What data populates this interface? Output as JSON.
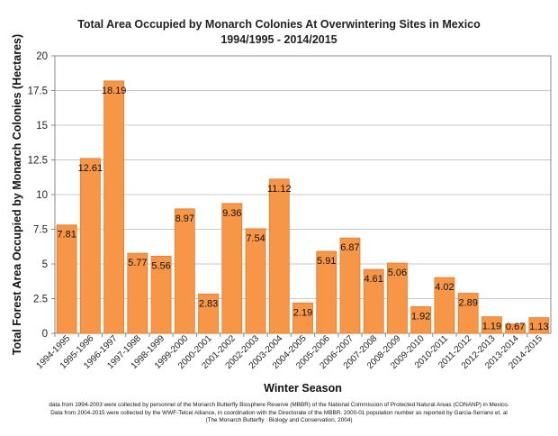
{
  "chart_data": {
    "type": "bar",
    "title": "Total Area Occupied by Monarch Colonies At Overwintering Sites in Mexico",
    "subtitle": "1994/1995 - 2014/2015",
    "xlabel": "Winter Season",
    "ylabel": "Total Forest Area Occupied by Monarch Colonies (Hectares)",
    "ylim": [
      0,
      20
    ],
    "yticks": [
      "0",
      "2.5",
      "5",
      "7.5",
      "10",
      "12.5",
      "15",
      "17.5",
      "20"
    ],
    "grid": true,
    "categories": [
      "1994-1995",
      "1995-1996",
      "1996-1997",
      "1997-1998",
      "1998-1999",
      "1999-2000",
      "2000-2001",
      "2001-2002",
      "2002-2003",
      "2003-2004",
      "2004-2005",
      "2005-2006",
      "2006-2007",
      "2007-2008",
      "2008-2009",
      "2009-2010",
      "2010-2011",
      "2011-2012",
      "2012-2013",
      "2013-2014",
      "2014-2015"
    ],
    "values": [
      7.81,
      12.61,
      18.19,
      5.77,
      5.56,
      8.97,
      2.83,
      9.36,
      7.54,
      11.12,
      2.19,
      5.91,
      6.87,
      4.61,
      5.06,
      1.92,
      4.02,
      2.89,
      1.19,
      0.67,
      1.13
    ],
    "labels": [
      "7.81",
      "12.61",
      "18.19",
      "5.77",
      "5.56",
      "8.97",
      "2.83",
      "9.36",
      "7.54",
      "11.12",
      "2.19",
      "5.91",
      "6.87",
      "4.61",
      "5.06",
      "1.92",
      "4.02",
      "2.89",
      "1.19",
      "0.67",
      "1.13"
    ],
    "bar_color": "#F79646",
    "bar_edge": "#E07B2E"
  },
  "notes": [
    "data from 1994-2003 were collected by personnel of the Monarch Butterfly Biosphere Reserve (MBBR) of the National Commission of Protected Natural Areas (CONANP) in Mexico.",
    "Data from 2004-2015 were collected by the WWF-Telcel Alliance, in coordination with the Directorate of the MBBR. 2000-01 population number as reported by Garcia-Serrano et. al",
    "(The Monarch Butterfly : Biology and Conservation, 2004)"
  ]
}
